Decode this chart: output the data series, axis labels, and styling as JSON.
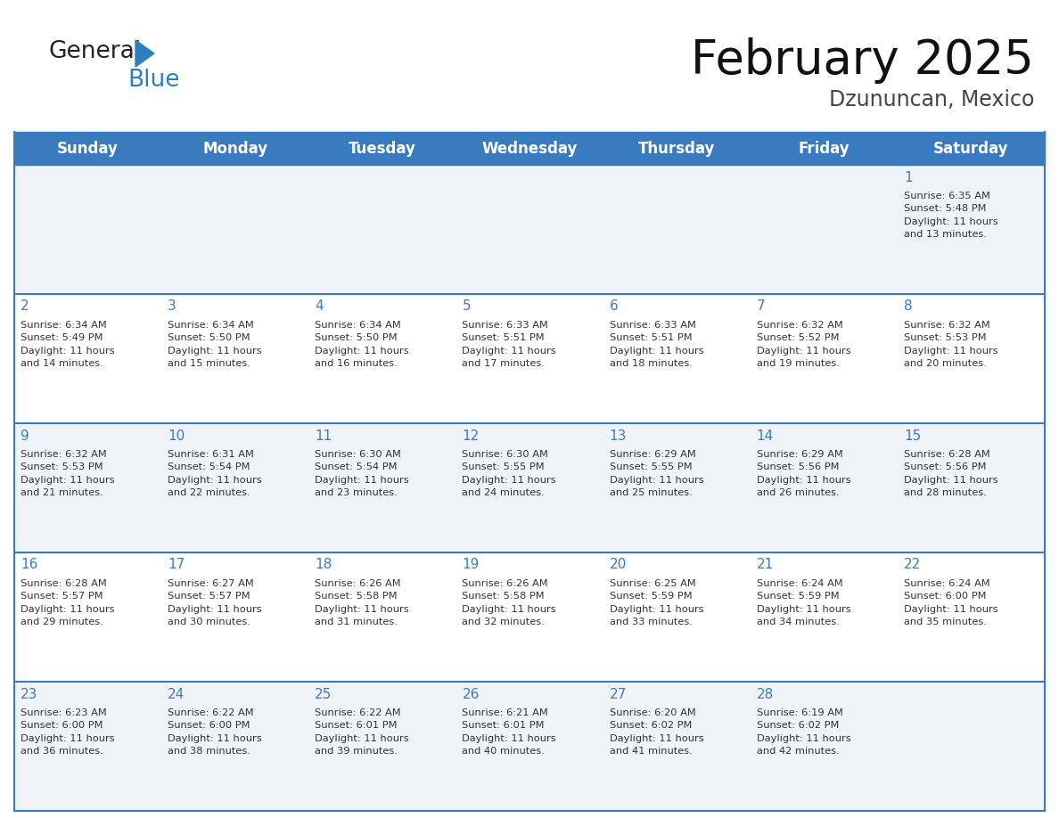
{
  "title": "February 2025",
  "subtitle": "Dzununcan, Mexico",
  "days_of_week": [
    "Sunday",
    "Monday",
    "Tuesday",
    "Wednesday",
    "Thursday",
    "Friday",
    "Saturday"
  ],
  "header_bg": "#3a7abf",
  "header_text": "#ffffff",
  "cell_bg_odd": "#f0f4f8",
  "cell_bg_even": "#ffffff",
  "day_num_color": "#3a7abf",
  "text_color": "#333333",
  "line_color": "#3a7abf",
  "logo_general_color": "#222222",
  "logo_blue_color": "#2e7fbf",
  "fig_width": 1188,
  "fig_height": 918,
  "calendar_data": [
    [
      {
        "day": null,
        "info": null
      },
      {
        "day": null,
        "info": null
      },
      {
        "day": null,
        "info": null
      },
      {
        "day": null,
        "info": null
      },
      {
        "day": null,
        "info": null
      },
      {
        "day": null,
        "info": null
      },
      {
        "day": 1,
        "info": "Sunrise: 6:35 AM\nSunset: 5:48 PM\nDaylight: 11 hours\nand 13 minutes."
      }
    ],
    [
      {
        "day": 2,
        "info": "Sunrise: 6:34 AM\nSunset: 5:49 PM\nDaylight: 11 hours\nand 14 minutes."
      },
      {
        "day": 3,
        "info": "Sunrise: 6:34 AM\nSunset: 5:50 PM\nDaylight: 11 hours\nand 15 minutes."
      },
      {
        "day": 4,
        "info": "Sunrise: 6:34 AM\nSunset: 5:50 PM\nDaylight: 11 hours\nand 16 minutes."
      },
      {
        "day": 5,
        "info": "Sunrise: 6:33 AM\nSunset: 5:51 PM\nDaylight: 11 hours\nand 17 minutes."
      },
      {
        "day": 6,
        "info": "Sunrise: 6:33 AM\nSunset: 5:51 PM\nDaylight: 11 hours\nand 18 minutes."
      },
      {
        "day": 7,
        "info": "Sunrise: 6:32 AM\nSunset: 5:52 PM\nDaylight: 11 hours\nand 19 minutes."
      },
      {
        "day": 8,
        "info": "Sunrise: 6:32 AM\nSunset: 5:53 PM\nDaylight: 11 hours\nand 20 minutes."
      }
    ],
    [
      {
        "day": 9,
        "info": "Sunrise: 6:32 AM\nSunset: 5:53 PM\nDaylight: 11 hours\nand 21 minutes."
      },
      {
        "day": 10,
        "info": "Sunrise: 6:31 AM\nSunset: 5:54 PM\nDaylight: 11 hours\nand 22 minutes."
      },
      {
        "day": 11,
        "info": "Sunrise: 6:30 AM\nSunset: 5:54 PM\nDaylight: 11 hours\nand 23 minutes."
      },
      {
        "day": 12,
        "info": "Sunrise: 6:30 AM\nSunset: 5:55 PM\nDaylight: 11 hours\nand 24 minutes."
      },
      {
        "day": 13,
        "info": "Sunrise: 6:29 AM\nSunset: 5:55 PM\nDaylight: 11 hours\nand 25 minutes."
      },
      {
        "day": 14,
        "info": "Sunrise: 6:29 AM\nSunset: 5:56 PM\nDaylight: 11 hours\nand 26 minutes."
      },
      {
        "day": 15,
        "info": "Sunrise: 6:28 AM\nSunset: 5:56 PM\nDaylight: 11 hours\nand 28 minutes."
      }
    ],
    [
      {
        "day": 16,
        "info": "Sunrise: 6:28 AM\nSunset: 5:57 PM\nDaylight: 11 hours\nand 29 minutes."
      },
      {
        "day": 17,
        "info": "Sunrise: 6:27 AM\nSunset: 5:57 PM\nDaylight: 11 hours\nand 30 minutes."
      },
      {
        "day": 18,
        "info": "Sunrise: 6:26 AM\nSunset: 5:58 PM\nDaylight: 11 hours\nand 31 minutes."
      },
      {
        "day": 19,
        "info": "Sunrise: 6:26 AM\nSunset: 5:58 PM\nDaylight: 11 hours\nand 32 minutes."
      },
      {
        "day": 20,
        "info": "Sunrise: 6:25 AM\nSunset: 5:59 PM\nDaylight: 11 hours\nand 33 minutes."
      },
      {
        "day": 21,
        "info": "Sunrise: 6:24 AM\nSunset: 5:59 PM\nDaylight: 11 hours\nand 34 minutes."
      },
      {
        "day": 22,
        "info": "Sunrise: 6:24 AM\nSunset: 6:00 PM\nDaylight: 11 hours\nand 35 minutes."
      }
    ],
    [
      {
        "day": 23,
        "info": "Sunrise: 6:23 AM\nSunset: 6:00 PM\nDaylight: 11 hours\nand 36 minutes."
      },
      {
        "day": 24,
        "info": "Sunrise: 6:22 AM\nSunset: 6:00 PM\nDaylight: 11 hours\nand 38 minutes."
      },
      {
        "day": 25,
        "info": "Sunrise: 6:22 AM\nSunset: 6:01 PM\nDaylight: 11 hours\nand 39 minutes."
      },
      {
        "day": 26,
        "info": "Sunrise: 6:21 AM\nSunset: 6:01 PM\nDaylight: 11 hours\nand 40 minutes."
      },
      {
        "day": 27,
        "info": "Sunrise: 6:20 AM\nSunset: 6:02 PM\nDaylight: 11 hours\nand 41 minutes."
      },
      {
        "day": 28,
        "info": "Sunrise: 6:19 AM\nSunset: 6:02 PM\nDaylight: 11 hours\nand 42 minutes."
      },
      {
        "day": null,
        "info": null
      }
    ]
  ]
}
